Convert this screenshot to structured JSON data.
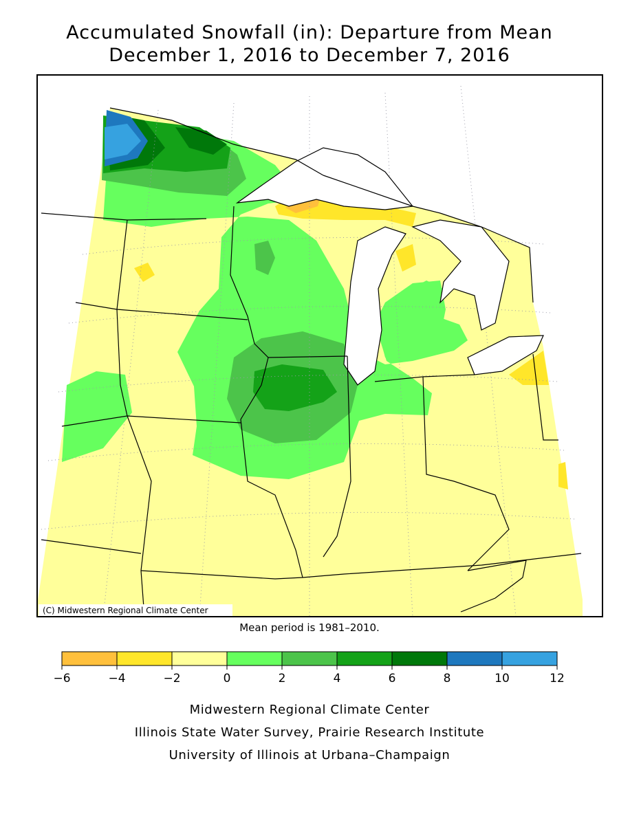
{
  "title": [
    "Accumulated Snowfall (in): Departure from Mean",
    "December 1, 2016 to December 7, 2016"
  ],
  "map": {
    "credit": "(C) Midwestern Regional Climate Center"
  },
  "note": "Mean period is 1981–2010.",
  "legend": {
    "colors": [
      "#ffc03c",
      "#ffe62a",
      "#ffff9a",
      "#66ff5e",
      "#4cc44a",
      "#14a218",
      "#00780a",
      "#1e78be",
      "#36a2e0"
    ],
    "ticks": [
      {
        "value": -6,
        "label": "−6"
      },
      {
        "value": -4,
        "label": "−4"
      },
      {
        "value": -2,
        "label": "−2"
      },
      0,
      2,
      4,
      6,
      8,
      10,
      12
    ]
  },
  "footer": [
    "Midwestern Regional Climate Center",
    "Illinois State Water Survey, Prairie Research Institute",
    "University of Illinois at Urbana–Champaign"
  ]
}
